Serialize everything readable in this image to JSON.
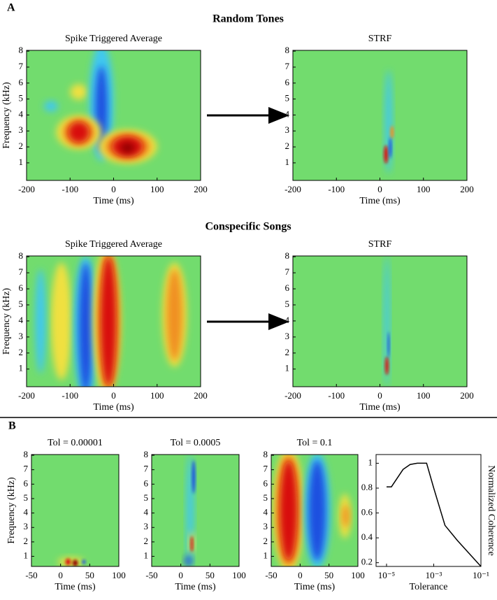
{
  "figure": {
    "panel_labels": [
      "A",
      "B"
    ],
    "section_titles": [
      "Random Tones",
      "Conspecific Songs"
    ]
  },
  "chart_data": [
    {
      "type": "heatmap",
      "title": "Spike Triggered Average",
      "xlabel": "Time (ms)",
      "ylabel": "Frequency (kHz)",
      "xlim": [
        -200,
        200
      ],
      "ylim": [
        -0.1,
        8.05
      ],
      "xticks": [
        -200,
        -100,
        0,
        100,
        200
      ],
      "yticks": [
        1,
        2,
        3,
        4,
        5,
        6,
        7,
        8
      ]
    },
    {
      "type": "heatmap",
      "title": "STRF",
      "xlabel": "Time (ms)",
      "xlim": [
        -200,
        200
      ],
      "ylim": [
        -0.1,
        8.05
      ],
      "xticks": [
        -200,
        -100,
        0,
        100,
        200
      ],
      "yticks": [
        1,
        2,
        3,
        4,
        5,
        6,
        7,
        8
      ]
    },
    {
      "type": "heatmap",
      "title": "Spike Triggered Average",
      "xlabel": "Time (ms)",
      "ylabel": "Frequency (kHz)",
      "xlim": [
        -200,
        200
      ],
      "ylim": [
        -0.1,
        8.05
      ],
      "xticks": [
        -200,
        -100,
        0,
        100,
        200
      ],
      "yticks": [
        1,
        2,
        3,
        4,
        5,
        6,
        7,
        8
      ]
    },
    {
      "type": "heatmap",
      "title": "STRF",
      "xlabel": "Time (ms)",
      "xlim": [
        -200,
        200
      ],
      "ylim": [
        -0.1,
        8.05
      ],
      "xticks": [
        -200,
        -100,
        0,
        100,
        200
      ],
      "yticks": [
        1,
        2,
        3,
        4,
        5,
        6,
        7,
        8
      ]
    },
    {
      "type": "heatmap",
      "title": "Tol = 0.00001",
      "xlabel": "Time (ms)",
      "ylabel": "Frequency (kHz)",
      "xlim": [
        -50,
        100
      ],
      "ylim": [
        0.3,
        8.05
      ],
      "xticks": [
        -50,
        0,
        50,
        100
      ],
      "yticks": [
        1,
        2,
        3,
        4,
        5,
        6,
        7,
        8
      ]
    },
    {
      "type": "heatmap",
      "title": "Tol = 0.0005",
      "xlabel": "Time (ms)",
      "xlim": [
        -50,
        100
      ],
      "ylim": [
        0.3,
        8.05
      ],
      "xticks": [
        -50,
        0,
        50,
        100
      ],
      "yticks": [
        1,
        2,
        3,
        4,
        5,
        6,
        7,
        8
      ]
    },
    {
      "type": "heatmap",
      "title": "Tol = 0.1",
      "xlabel": "Time (ms)",
      "xlim": [
        -50,
        100
      ],
      "ylim": [
        0.3,
        8.05
      ],
      "xticks": [
        -50,
        0,
        50,
        100
      ],
      "yticks": [
        1,
        2,
        3,
        4,
        5,
        6,
        7,
        8
      ]
    },
    {
      "type": "line",
      "xlabel": "Tolerance",
      "ylabel": "Normalized Coherence",
      "xscale": "log",
      "color": "#000000",
      "x": [
        1e-05,
        1.6e-05,
        5e-05,
        0.0001,
        0.0002,
        0.0005,
        0.001,
        0.003,
        0.01,
        0.1
      ],
      "values": [
        0.81,
        0.81,
        0.95,
        0.99,
        1.0,
        1.0,
        0.8,
        0.5,
        0.38,
        0.17
      ],
      "xlim": [
        3.6e-06,
        0.1
      ],
      "ylim": [
        0.17,
        1.07
      ],
      "xticks": [
        {
          "value": 1e-05,
          "label": "10⁻⁵"
        },
        {
          "value": 0.001,
          "label": "10⁻³"
        },
        {
          "value": 0.1,
          "label": "10⁻¹"
        }
      ],
      "yticks": [
        0.2,
        0.4,
        0.6,
        0.8,
        1
      ]
    }
  ]
}
